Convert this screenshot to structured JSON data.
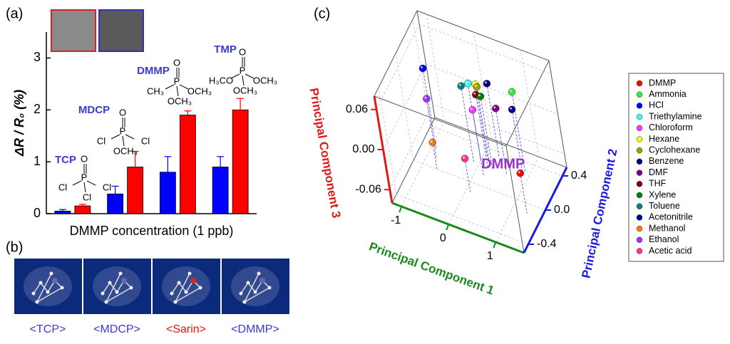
{
  "panels": {
    "a": "(a)",
    "b": "(b)",
    "c": "(c)"
  },
  "molecules": [
    {
      "label": "<TCP>",
      "color": "#3a3ad6"
    },
    {
      "label": "<MDCP>",
      "color": "#3a3ad6"
    },
    {
      "label": "<Sarin>",
      "color": "#ee1111"
    },
    {
      "label": "<DMMP>",
      "color": "#3a3ad6"
    }
  ],
  "chart_data": [
    {
      "type": "bar",
      "xlabel": "DMMP concentration (1 ppb)",
      "ylabel": "ΔR / R₀ (%)",
      "ylim": [
        0,
        3.5
      ],
      "yticks": [
        0,
        1,
        2,
        3
      ],
      "series": [
        {
          "color": "#0000ff",
          "values": [
            0.05,
            0.38,
            0.8,
            0.9
          ],
          "errors": [
            0.03,
            0.15,
            0.3,
            0.2
          ]
        },
        {
          "color": "#ff0000",
          "values": [
            0.15,
            0.9,
            1.9,
            2.0
          ],
          "errors": [
            0.03,
            0.3,
            0.08,
            0.22
          ]
        }
      ],
      "annotations": [
        {
          "name": "TCP",
          "structure": [
            "O",
            "P",
            "Cl",
            "Cl",
            "Cl"
          ]
        },
        {
          "name": "MDCP",
          "structure": [
            "O",
            "P",
            "Cl",
            "Cl",
            "OCH₃"
          ]
        },
        {
          "name": "DMMP",
          "structure": [
            "O",
            "P",
            "CH₃",
            "OCH₃",
            "OCH₃"
          ]
        },
        {
          "name": "TMP",
          "structure": [
            "O",
            "P",
            "H₃CO",
            "OCH₃",
            "OCH₃"
          ]
        }
      ]
    },
    {
      "type": "scatter3d",
      "xlabel": "Principal Component 1",
      "ylabel": "Principal Component 2",
      "zlabel": "Principal Component 3",
      "xlim": [
        -1.2,
        1.6
      ],
      "ylim": [
        -0.5,
        0.5
      ],
      "zlim": [
        -0.08,
        0.08
      ],
      "xticks": [
        -1,
        0,
        1
      ],
      "yticks": [
        0.4,
        {
          "value": 0,
          "label": "0.0"
        },
        -0.4
      ],
      "zticks": [
        0.06,
        {
          "value": 0,
          "label": "0.00"
        },
        -0.06
      ],
      "grid": true,
      "annotation": "DMMP",
      "series": [
        {
          "name": "DMMP",
          "color": "#ff0000",
          "x": [
            1.3
          ],
          "y": [
            -0.1
          ],
          "z": [
            -0.02
          ]
        },
        {
          "name": "Ammonia",
          "color": "#33ee33",
          "x": [
            0.9
          ],
          "y": [
            0.3
          ],
          "z": [
            0.04
          ]
        },
        {
          "name": "HCl",
          "color": "#0000ff",
          "x": [
            -0.9
          ],
          "y": [
            0.2
          ],
          "z": [
            0.04
          ]
        },
        {
          "name": "Triethylamine",
          "color": "#33ffff",
          "x": [
            0.0
          ],
          "y": [
            0.25
          ],
          "z": [
            0.035
          ]
        },
        {
          "name": "Chloroform",
          "color": "#ff33ff",
          "x": [
            0.2
          ],
          "y": [
            0.1
          ],
          "z": [
            0.02
          ]
        },
        {
          "name": "Hexane",
          "color": "#ffff00",
          "x": [
            0.1
          ],
          "y": [
            0.3
          ],
          "z": [
            0.03
          ]
        },
        {
          "name": "Cyclohexane",
          "color": "#a0a000",
          "x": [
            0.15
          ],
          "y": [
            0.28
          ],
          "z": [
            0.03
          ]
        },
        {
          "name": "Benzene",
          "color": "#000080",
          "x": [
            0.3
          ],
          "y": [
            0.35
          ],
          "z": [
            0.03
          ]
        },
        {
          "name": "DMF",
          "color": "#800080",
          "x": [
            0.6
          ],
          "y": [
            0.2
          ],
          "z": [
            0.02
          ]
        },
        {
          "name": "THF",
          "color": "#800000",
          "x": [
            0.2
          ],
          "y": [
            0.2
          ],
          "z": [
            0.03
          ]
        },
        {
          "name": "Xylene",
          "color": "#008000",
          "x": [
            0.3
          ],
          "y": [
            0.2
          ],
          "z": [
            0.03
          ]
        },
        {
          "name": "Toluene",
          "color": "#008080",
          "x": [
            -0.1
          ],
          "y": [
            0.2
          ],
          "z": [
            0.035
          ]
        },
        {
          "name": "Acetonitrile",
          "color": "#000099",
          "x": [
            0.9
          ],
          "y": [
            0.25
          ],
          "z": [
            0.02
          ]
        },
        {
          "name": "Methanol",
          "color": "#ff8000",
          "x": [
            -0.7
          ],
          "y": [
            0.0
          ],
          "z": [
            -0.04
          ]
        },
        {
          "name": "Ethanol",
          "color": "#9933ff",
          "x": [
            -0.8
          ],
          "y": [
            0.1
          ],
          "z": [
            0.01
          ]
        },
        {
          "name": "Acetic acid",
          "color": "#ff3399",
          "x": [
            0.1
          ],
          "y": [
            -0.1
          ],
          "z": [
            -0.03
          ]
        }
      ]
    }
  ]
}
